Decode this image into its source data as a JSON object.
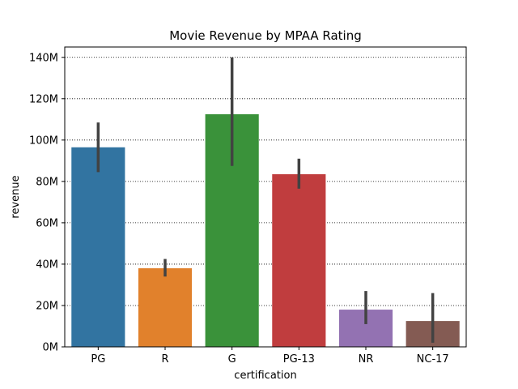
{
  "chart_data": {
    "type": "bar",
    "title": "Movie Revenue by MPAA Rating",
    "xlabel": "certification",
    "ylabel": "revenue",
    "categories": [
      "PG",
      "R",
      "G",
      "PG-13",
      "NR",
      "NC-17"
    ],
    "values": [
      96500000,
      38000000,
      112500000,
      83500000,
      18000000,
      12500000
    ],
    "error_low": [
      84500000,
      34000000,
      87500000,
      76500000,
      11000000,
      2000000
    ],
    "error_high": [
      108500000,
      42500000,
      140000000,
      91000000,
      27000000,
      26000000
    ],
    "colors": [
      "#3274a1",
      "#e1812c",
      "#3a923a",
      "#c03d3e",
      "#9372b2",
      "#845b53"
    ],
    "ylim": [
      0,
      145000000
    ],
    "yticks": [
      0,
      20000000,
      40000000,
      60000000,
      80000000,
      100000000,
      120000000,
      140000000
    ],
    "ytick_labels": [
      "0M",
      "20M",
      "40M",
      "60M",
      "80M",
      "100M",
      "120M",
      "140M"
    ],
    "grid": true,
    "grid_axis": "y",
    "grid_style": "dotted"
  }
}
